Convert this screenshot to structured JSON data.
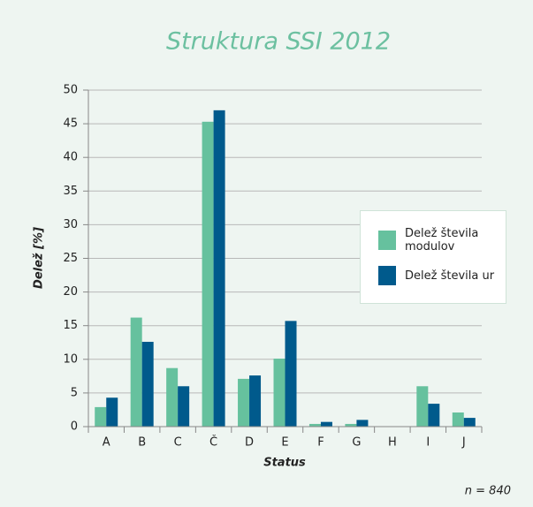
{
  "chart_data": {
    "type": "bar",
    "title": "Struktura SSI 2012",
    "categories": [
      "A",
      "B",
      "C",
      "Č",
      "D",
      "E",
      "F",
      "G",
      "H",
      "I",
      "J"
    ],
    "series": [
      {
        "name": "Delež števila modulov",
        "color": "#66c19e",
        "values": [
          2.9,
          16.2,
          8.7,
          45.3,
          7.1,
          10.1,
          0.4,
          0.4,
          0,
          6.0,
          2.1
        ]
      },
      {
        "name": "Delež števila ur",
        "color": "#005a8c",
        "values": [
          4.3,
          12.6,
          6.0,
          47.0,
          7.6,
          15.7,
          0.7,
          1.0,
          0,
          3.4,
          1.3
        ]
      }
    ],
    "ylim": [
      0,
      50
    ],
    "yticks": [
      0,
      5,
      10,
      15,
      20,
      25,
      30,
      35,
      40,
      45,
      50
    ],
    "grid": true,
    "y_label": "Delež [%]",
    "x_label": "Status",
    "note": "n = 840",
    "legend": "right"
  }
}
